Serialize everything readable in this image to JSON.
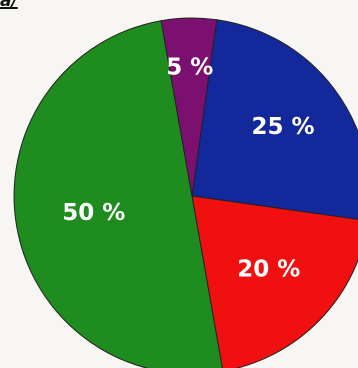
{
  "corner_label": "a/",
  "chart_data": {
    "type": "pie",
    "start_angle_deg": 8,
    "direction": "clockwise",
    "slices": [
      {
        "label": "25 %",
        "value": 25,
        "color": "#13289a"
      },
      {
        "label": "20 %",
        "value": 20,
        "color": "#f01010"
      },
      {
        "label": "50 %",
        "value": 50,
        "color": "#1f8c1f"
      },
      {
        "label": "5 %",
        "value": 5,
        "color": "#7c1070"
      }
    ]
  }
}
